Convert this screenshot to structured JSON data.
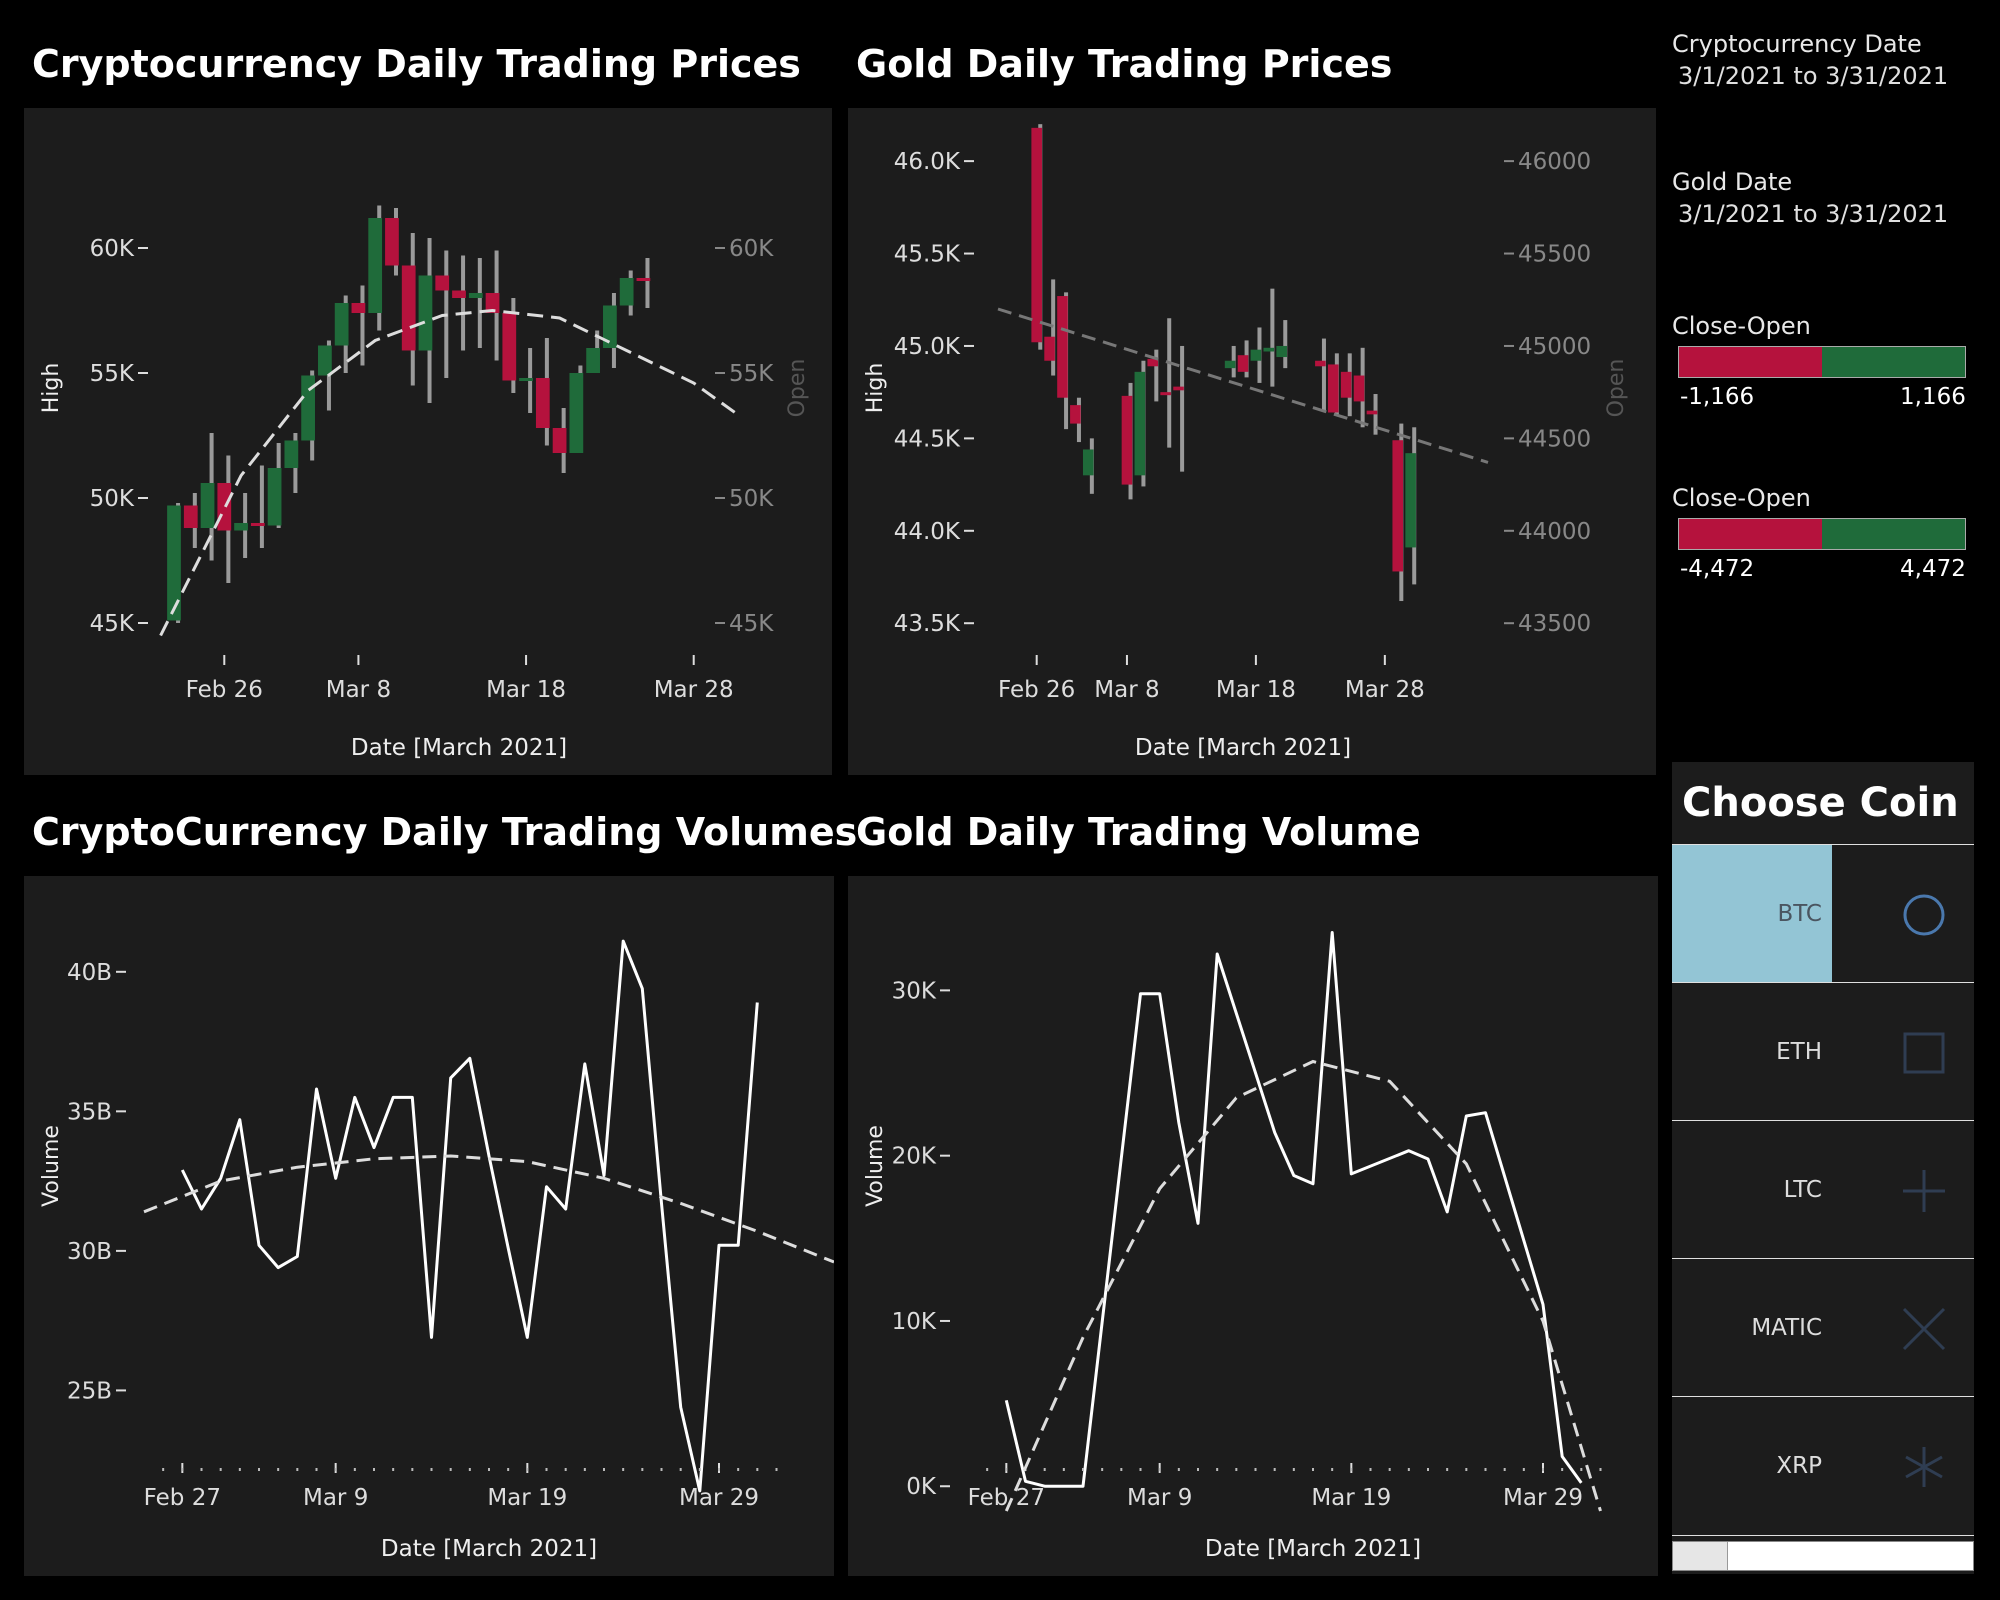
{
  "colors": {
    "positive": "#1f6b3a",
    "negative": "#b5123d",
    "panel": "#1c1c1c",
    "selected_coin": "#93c5d5"
  },
  "titles": {
    "crypto_prices": "Cryptocurrency Daily Trading Prices",
    "gold_prices": "Gold Daily Trading Prices",
    "crypto_volumes": "CryptoCurrency Daily Trading Volumes",
    "gold_volume": "Gold Daily Trading Volume"
  },
  "sidebar": {
    "crypto_date_label": "Cryptocurrency Date",
    "crypto_date_value": "3/1/2021 to 3/31/2021",
    "gold_date_label": "Gold Date",
    "gold_date_value": "3/1/2021 to 3/31/2021",
    "legend1": {
      "label": "Close-Open",
      "min": "-1,166",
      "max": "1,166"
    },
    "legend2": {
      "label": "Close-Open",
      "min": "-4,472",
      "max": "4,472"
    }
  },
  "chooser": {
    "title": "Choose Coin",
    "coins": [
      {
        "label": "BTC",
        "icon": "circle-icon",
        "selected": true
      },
      {
        "label": "ETH",
        "icon": "square-icon",
        "selected": false
      },
      {
        "label": "LTC",
        "icon": "plus-icon",
        "selected": false
      },
      {
        "label": "MATIC",
        "icon": "x-icon",
        "selected": false
      },
      {
        "label": "XRP",
        "icon": "asterisk-icon",
        "selected": false
      }
    ]
  },
  "chart_data": [
    {
      "id": "crypto_prices",
      "type": "candlestick",
      "title": "Cryptocurrency Daily Trading Prices",
      "xlabel": "Date [March 2021]",
      "ylabel": "High",
      "ylabel_right": "Open",
      "x_ticks": [
        "Feb 26",
        "Mar 8",
        "Mar 18",
        "Mar 28"
      ],
      "y_ticks": [
        "45K",
        "50K",
        "55K",
        "60K"
      ],
      "y_tick_values": [
        45000,
        50000,
        55000,
        60000
      ],
      "y_ticks_right": [
        "45K",
        "50K",
        "55K",
        "60K"
      ],
      "ylim": [
        44400,
        62400
      ],
      "x_range": [
        0,
        34
      ],
      "tick_x": [
        3,
        11,
        21,
        31
      ],
      "candles": [
        {
          "x": 0,
          "open": 45100,
          "close": 49700,
          "high": 49800,
          "low": 45000
        },
        {
          "x": 1,
          "open": 49700,
          "close": 48800,
          "high": 50200,
          "low": 48000
        },
        {
          "x": 2,
          "open": 48800,
          "close": 50600,
          "high": 52600,
          "low": 47500
        },
        {
          "x": 3,
          "open": 50600,
          "close": 48700,
          "high": 51700,
          "low": 46600
        },
        {
          "x": 4,
          "open": 48700,
          "close": 49000,
          "high": 50200,
          "low": 47600
        },
        {
          "x": 5,
          "open": 49000,
          "close": 48900,
          "high": 51300,
          "low": 48000
        },
        {
          "x": 6,
          "open": 48900,
          "close": 51200,
          "high": 52200,
          "low": 48800
        },
        {
          "x": 7,
          "open": 51200,
          "close": 52300,
          "high": 52600,
          "low": 50200
        },
        {
          "x": 8,
          "open": 52300,
          "close": 54900,
          "high": 55100,
          "low": 51500
        },
        {
          "x": 9,
          "open": 54900,
          "close": 56100,
          "high": 56300,
          "low": 53500
        },
        {
          "x": 10,
          "open": 56100,
          "close": 57800,
          "high": 58100,
          "low": 55000
        },
        {
          "x": 11,
          "open": 57800,
          "close": 57400,
          "high": 58500,
          "low": 55300
        },
        {
          "x": 12,
          "open": 57400,
          "close": 61200,
          "high": 61700,
          "low": 56700
        },
        {
          "x": 13,
          "open": 61200,
          "close": 59300,
          "high": 61600,
          "low": 58900
        },
        {
          "x": 14,
          "open": 59300,
          "close": 55900,
          "high": 60600,
          "low": 54500
        },
        {
          "x": 15,
          "open": 55900,
          "close": 58900,
          "high": 60400,
          "low": 53800
        },
        {
          "x": 16,
          "open": 58900,
          "close": 58300,
          "high": 59900,
          "low": 54800
        },
        {
          "x": 17,
          "open": 58300,
          "close": 58000,
          "high": 59700,
          "low": 55900
        },
        {
          "x": 18,
          "open": 58000,
          "close": 58200,
          "high": 59600,
          "low": 56000
        },
        {
          "x": 19,
          "open": 58200,
          "close": 57400,
          "high": 59900,
          "low": 55500
        },
        {
          "x": 20,
          "open": 57400,
          "close": 54700,
          "high": 58000,
          "low": 54200
        },
        {
          "x": 21,
          "open": 54700,
          "close": 54800,
          "high": 56000,
          "low": 53400
        },
        {
          "x": 22,
          "open": 54800,
          "close": 52800,
          "high": 56400,
          "low": 52100
        },
        {
          "x": 23,
          "open": 52800,
          "close": 51800,
          "high": 53600,
          "low": 51000
        },
        {
          "x": 24,
          "open": 51800,
          "close": 55000,
          "high": 55300,
          "low": 51800
        },
        {
          "x": 25,
          "open": 55000,
          "close": 56000,
          "high": 56700,
          "low": 55000
        },
        {
          "x": 26,
          "open": 56000,
          "close": 57700,
          "high": 58200,
          "low": 55200
        },
        {
          "x": 27,
          "open": 57700,
          "close": 58800,
          "high": 59100,
          "low": 57300
        },
        {
          "x": 28,
          "open": 58800,
          "close": 58700,
          "high": 59600,
          "low": 57600
        }
      ],
      "trend_line_samples": [
        {
          "x": -0.8,
          "y": 44500
        },
        {
          "x": 4,
          "y": 50900
        },
        {
          "x": 8,
          "y": 54300
        },
        {
          "x": 12,
          "y": 56300
        },
        {
          "x": 16,
          "y": 57300
        },
        {
          "x": 19,
          "y": 57500
        },
        {
          "x": 23,
          "y": 57200
        },
        {
          "x": 27,
          "y": 55900
        },
        {
          "x": 31,
          "y": 54600
        },
        {
          "x": 33.5,
          "y": 53400
        }
      ]
    },
    {
      "id": "gold_prices",
      "type": "candlestick",
      "title": "Gold Daily Trading Prices",
      "xlabel": "Date [March 2021]",
      "ylabel": "High",
      "ylabel_right": "Open",
      "x_ticks": [
        "Feb 26",
        "Mar 8",
        "Mar 18",
        "Mar 28"
      ],
      "y_ticks": [
        "43.5K",
        "44.0K",
        "44.5K",
        "45.0K",
        "45.5K",
        "46.0K"
      ],
      "y_tick_values": [
        43500,
        44000,
        44500,
        45000,
        45500,
        46000
      ],
      "y_ticks_right": [
        "43500",
        "44000",
        "44500",
        "45000",
        "45500",
        "46000"
      ],
      "ylim": [
        43420,
        46190
      ],
      "x_range": [
        0,
        38
      ],
      "tick_x": [
        3,
        10,
        20,
        30
      ],
      "candles": [
        {
          "x": 3,
          "open": 46180,
          "close": 45020,
          "high": 46200,
          "low": 44980
        },
        {
          "x": 4,
          "open": 45050,
          "close": 44920,
          "high": 45360,
          "low": 44840
        },
        {
          "x": 5,
          "open": 45270,
          "close": 44720,
          "high": 45290,
          "low": 44550
        },
        {
          "x": 6,
          "open": 44680,
          "close": 44580,
          "high": 44720,
          "low": 44480
        },
        {
          "x": 7,
          "open": 44300,
          "close": 44440,
          "high": 44500,
          "low": 44200
        },
        {
          "x": 10,
          "open": 44730,
          "close": 44250,
          "high": 44800,
          "low": 44170
        },
        {
          "x": 11,
          "open": 44300,
          "close": 44860,
          "high": 44920,
          "low": 44240
        },
        {
          "x": 12,
          "open": 44930,
          "close": 44890,
          "high": 44980,
          "low": 44700
        },
        {
          "x": 13,
          "open": 44750,
          "close": 44740,
          "high": 45150,
          "low": 44450
        },
        {
          "x": 14,
          "open": 44780,
          "close": 44760,
          "high": 45000,
          "low": 44320
        },
        {
          "x": 18,
          "open": 44880,
          "close": 44920,
          "high": 45000,
          "low": 44830
        },
        {
          "x": 19,
          "open": 44950,
          "close": 44860,
          "high": 45030,
          "low": 44830
        },
        {
          "x": 20,
          "open": 44920,
          "close": 44980,
          "high": 45100,
          "low": 44800
        },
        {
          "x": 21,
          "open": 44970,
          "close": 44990,
          "high": 45310,
          "low": 44780
        },
        {
          "x": 22,
          "open": 44940,
          "close": 45000,
          "high": 45140,
          "low": 44880
        },
        {
          "x": 25,
          "open": 44920,
          "close": 44890,
          "high": 45040,
          "low": 44650
        },
        {
          "x": 26,
          "open": 44900,
          "close": 44640,
          "high": 44960,
          "low": 44630
        },
        {
          "x": 27,
          "open": 44860,
          "close": 44720,
          "high": 44960,
          "low": 44620
        },
        {
          "x": 28,
          "open": 44840,
          "close": 44700,
          "high": 44990,
          "low": 44560
        },
        {
          "x": 29,
          "open": 44650,
          "close": 44630,
          "high": 44740,
          "low": 44520
        },
        {
          "x": 31,
          "open": 44490,
          "close": 43780,
          "high": 44580,
          "low": 43620
        },
        {
          "x": 32,
          "open": 43910,
          "close": 44420,
          "high": 44560,
          "low": 43710
        }
      ],
      "trend_line_samples": [
        {
          "x": 0,
          "y": 45200
        },
        {
          "x": 38,
          "y": 44370
        }
      ]
    },
    {
      "id": "crypto_volumes",
      "type": "line",
      "title": "CryptoCurrency Daily Trading Volumes",
      "xlabel": "Date [March 2021]",
      "ylabel": "Volume",
      "x_ticks": [
        "Feb 27",
        "Mar 9",
        "Mar 19",
        "Mar 29"
      ],
      "y_ticks": [
        "25B",
        "30B",
        "35B",
        "40B"
      ],
      "y_tick_values": [
        25,
        30,
        35,
        40
      ],
      "ylim": [
        20.5,
        42.0
      ],
      "x_range": [
        -2,
        34
      ],
      "tick_x": [
        0,
        8,
        18,
        28
      ],
      "series": [
        {
          "values": [
            {
              "x": 0,
              "y": 32.9
            },
            {
              "x": 1,
              "y": 31.5
            },
            {
              "x": 2,
              "y": 32.6
            },
            {
              "x": 3,
              "y": 34.7
            },
            {
              "x": 4,
              "y": 30.2
            },
            {
              "x": 5,
              "y": 29.4
            },
            {
              "x": 6,
              "y": 29.8
            },
            {
              "x": 7,
              "y": 35.8
            },
            {
              "x": 8,
              "y": 32.6
            },
            {
              "x": 9,
              "y": 35.5
            },
            {
              "x": 10,
              "y": 33.7
            },
            {
              "x": 11,
              "y": 35.5
            },
            {
              "x": 12,
              "y": 35.5
            },
            {
              "x": 13,
              "y": 26.9
            },
            {
              "x": 14,
              "y": 36.2
            },
            {
              "x": 15,
              "y": 36.9
            },
            {
              "x": 16,
              "y": 33.4
            },
            {
              "x": 17,
              "y": 30.1
            },
            {
              "x": 18,
              "y": 26.9
            },
            {
              "x": 19,
              "y": 32.3
            },
            {
              "x": 20,
              "y": 31.5
            },
            {
              "x": 21,
              "y": 36.7
            },
            {
              "x": 22,
              "y": 32.7
            },
            {
              "x": 23,
              "y": 41.1
            },
            {
              "x": 24,
              "y": 39.4
            },
            {
              "x": 25,
              "y": 31.7
            },
            {
              "x": 26,
              "y": 24.4
            },
            {
              "x": 27,
              "y": 21.4
            },
            {
              "x": 28,
              "y": 30.2
            },
            {
              "x": 29,
              "y": 30.2
            },
            {
              "x": 30,
              "y": 38.9
            }
          ]
        }
      ],
      "trend_line_samples": [
        {
          "x": -2,
          "y": 31.4
        },
        {
          "x": 2,
          "y": 32.5
        },
        {
          "x": 6,
          "y": 33.0
        },
        {
          "x": 10,
          "y": 33.3
        },
        {
          "x": 14,
          "y": 33.4
        },
        {
          "x": 18,
          "y": 33.2
        },
        {
          "x": 22,
          "y": 32.6
        },
        {
          "x": 26,
          "y": 31.7
        },
        {
          "x": 30,
          "y": 30.7
        },
        {
          "x": 34,
          "y": 29.6
        }
      ]
    },
    {
      "id": "gold_volume",
      "type": "line",
      "title": "Gold Daily Trading Volume",
      "xlabel": "Date [March 2021]",
      "ylabel": "Volume",
      "x_ticks": [
        "Feb 27",
        "Mar 9",
        "Mar 19",
        "Mar 29"
      ],
      "y_ticks": [
        "0K",
        "10K",
        "20K",
        "30K"
      ],
      "y_tick_values": [
        0,
        10000,
        20000,
        30000
      ],
      "ylim": [
        -1800,
        34500
      ],
      "x_range": [
        -2,
        34
      ],
      "tick_x": [
        0,
        8,
        18,
        28
      ],
      "series": [
        {
          "values": [
            {
              "x": 0,
              "y": 5200
            },
            {
              "x": 1,
              "y": 300
            },
            {
              "x": 2,
              "y": 0
            },
            {
              "x": 3,
              "y": 0
            },
            {
              "x": 4,
              "y": 0
            },
            {
              "x": 7,
              "y": 29800
            },
            {
              "x": 8,
              "y": 29800
            },
            {
              "x": 9,
              "y": 22000
            },
            {
              "x": 10,
              "y": 15900
            },
            {
              "x": 11,
              "y": 32200
            },
            {
              "x": 14,
              "y": 21400
            },
            {
              "x": 15,
              "y": 18800
            },
            {
              "x": 16,
              "y": 18300
            },
            {
              "x": 17,
              "y": 33500
            },
            {
              "x": 18,
              "y": 18900
            },
            {
              "x": 21,
              "y": 20300
            },
            {
              "x": 22,
              "y": 19800
            },
            {
              "x": 23,
              "y": 16600
            },
            {
              "x": 24,
              "y": 22400
            },
            {
              "x": 25,
              "y": 22600
            },
            {
              "x": 28,
              "y": 11000
            },
            {
              "x": 29,
              "y": 1800
            },
            {
              "x": 30,
              "y": 200
            }
          ]
        }
      ],
      "trend_line_samples": [
        {
          "x": 0,
          "y": -1500
        },
        {
          "x": 4,
          "y": 9000
        },
        {
          "x": 8,
          "y": 18000
        },
        {
          "x": 12,
          "y": 23500
        },
        {
          "x": 16,
          "y": 25700
        },
        {
          "x": 20,
          "y": 24500
        },
        {
          "x": 24,
          "y": 19500
        },
        {
          "x": 28,
          "y": 10000
        },
        {
          "x": 31,
          "y": -1500
        }
      ]
    }
  ]
}
